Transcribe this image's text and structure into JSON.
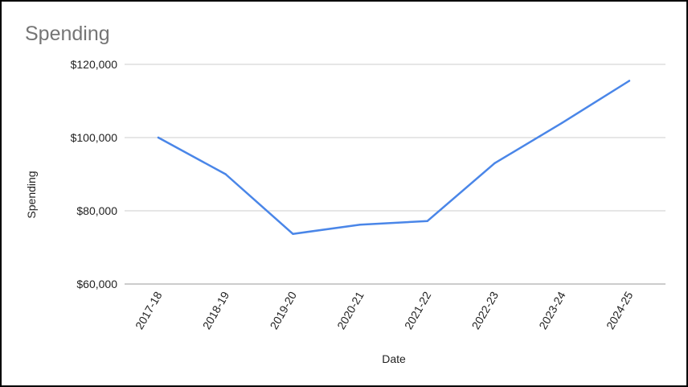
{
  "chart_data": {
    "type": "line",
    "title": "Spending",
    "xlabel": "Date",
    "ylabel": "Spending",
    "categories": [
      "2017-18",
      "2018-19",
      "2019-20",
      "2020-21",
      "2021-22",
      "2022-23",
      "2023-24",
      "2024-25"
    ],
    "series": [
      {
        "values": [
          100000,
          90000,
          73700,
          76200,
          77200,
          93000,
          104000,
          115500
        ],
        "color": "#4a86e8"
      }
    ],
    "ylim": [
      60000,
      120000
    ],
    "yticks": [
      60000,
      80000,
      100000,
      120000
    ],
    "ytick_labels": [
      "$60,000",
      "$80,000",
      "$100,000",
      "$120,000"
    ],
    "grid": true,
    "legend": "none"
  }
}
